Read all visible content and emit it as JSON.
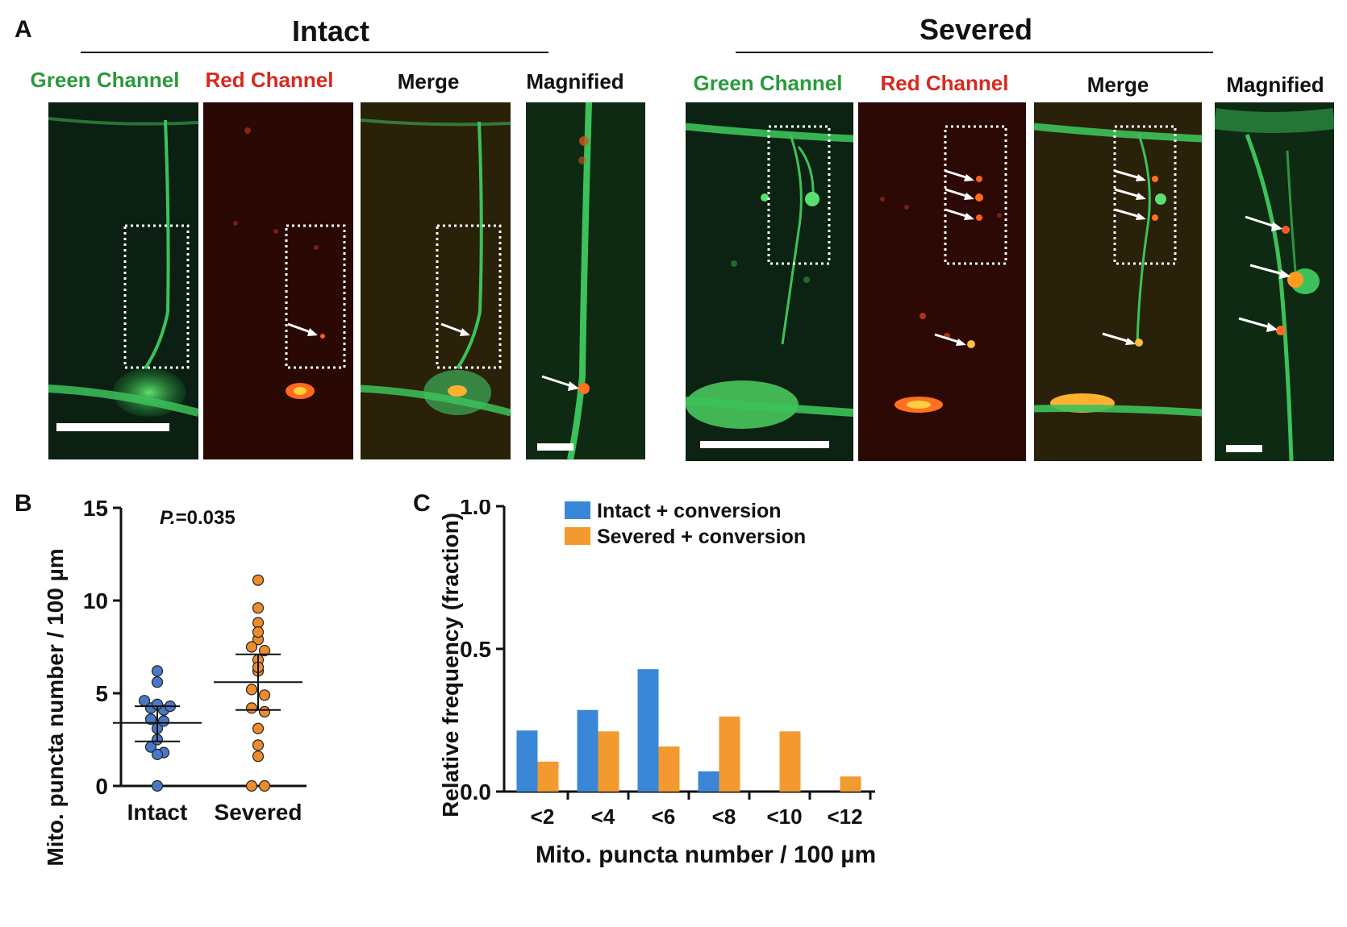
{
  "panel_a": {
    "letter": "A",
    "groups": [
      {
        "title": "Intact",
        "labels": [
          "Green Channel",
          "Red Channel",
          "Merge",
          "Magnified"
        ]
      },
      {
        "title": "Severed",
        "labels": [
          "Green Channel",
          "Red Channel",
          "Merge",
          "Magnified"
        ]
      }
    ],
    "colors": {
      "green_label": "#2a9a3c",
      "red_label": "#d8291f",
      "black_label": "#111111"
    }
  },
  "panel_b": {
    "letter": "B",
    "p_prefix": "P.",
    "p_value": "=0.035"
  },
  "panel_c": {
    "letter": "C"
  },
  "chart_data": [
    {
      "type": "scatter",
      "title": "",
      "xlabel": "",
      "ylabel": "Mito. puncta number  / 100 µm",
      "ylim": [
        0,
        15
      ],
      "yticks": [
        "0",
        "5",
        "10",
        "15"
      ],
      "categories": [
        "Intact",
        "Severed"
      ],
      "annotation": "P.=0.035",
      "series": [
        {
          "color": "#4a78c8",
          "values": [
            6.2,
            5.6,
            4.6,
            4.4,
            4.3,
            4.2,
            4.1,
            3.6,
            3.5,
            3.1,
            2.5,
            2.1,
            1.8,
            1.7,
            0.0
          ],
          "mean": 3.4,
          "ci": [
            2.4,
            4.3
          ]
        },
        {
          "color": "#ec8c2c",
          "values": [
            11.1,
            9.6,
            8.8,
            8.3,
            7.9,
            7.5,
            7.3,
            6.8,
            6.4,
            6.2,
            5.2,
            4.9,
            4.2,
            4.0,
            3.1,
            2.2,
            1.6,
            0.0,
            0.0
          ],
          "mean": 5.6,
          "ci": [
            4.1,
            7.1
          ]
        }
      ]
    },
    {
      "type": "bar",
      "title": "",
      "xlabel": "Mito. puncta number  / 100 µm",
      "ylabel": "Relative frequency (fraction)",
      "ylim": [
        0,
        1.0
      ],
      "yticks": [
        "0.0",
        "0.5",
        "1.0"
      ],
      "categories": [
        "<2",
        "<4",
        "<6",
        "<8",
        "<10",
        "<12"
      ],
      "legend_position": "top",
      "series": [
        {
          "name": "Intact + conversion",
          "color": "#3a87d8",
          "values": [
            0.214,
            0.286,
            0.429,
            0.071,
            0.0,
            0.0
          ]
        },
        {
          "name": "Severed + conversion",
          "color": "#f29a30",
          "values": [
            0.105,
            0.211,
            0.158,
            0.263,
            0.211,
            0.053
          ]
        }
      ]
    }
  ]
}
